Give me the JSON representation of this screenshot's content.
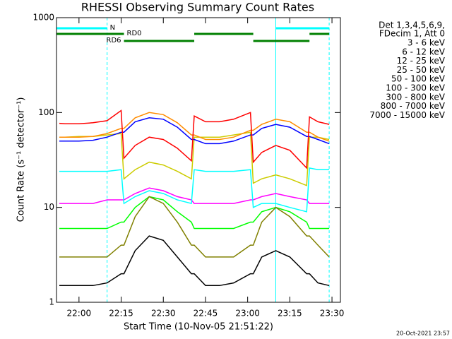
{
  "chart_data": {
    "type": "line",
    "title": "RHESSI Observing Summary Count Rates",
    "x_label": "Start Time (10-Nov-05 21:51:22)",
    "y_label": "Count Rate (s⁻¹ detector⁻¹)",
    "footer": "20-Oct-2021 23:57",
    "legend_header": [
      "Det 1,3,4,5,6,9,",
      "FDecim 1, Att 0"
    ],
    "log_y": true,
    "xlim": [
      "21:52",
      "23:33"
    ],
    "xticks": [
      "22:00",
      "22:15",
      "22:30",
      "22:45",
      "23:00",
      "23:15",
      "23:30"
    ],
    "ylim": [
      1,
      1000
    ],
    "yticks": [
      1,
      10,
      100,
      1000
    ],
    "bands": [
      {
        "label": "N",
        "color": "#00ffff",
        "spans": [
          [
            "21:52",
            "22:10"
          ],
          [
            "23:10",
            "23:29"
          ]
        ]
      },
      {
        "label": "RD0",
        "color": "#008000",
        "spans": [
          [
            "21:52",
            "22:16"
          ],
          [
            "22:41",
            "23:02"
          ],
          [
            "23:22",
            "23:29"
          ]
        ]
      },
      {
        "label": "RD6",
        "color": "#008000",
        "spans": [
          [
            "22:16",
            "22:41"
          ],
          [
            "23:02",
            "23:22"
          ]
        ]
      }
    ],
    "x": [
      "21:53",
      "21:55",
      "22:00",
      "22:05",
      "22:10",
      "22:15",
      "22:16",
      "22:20",
      "22:25",
      "22:30",
      "22:35",
      "22:40",
      "22:41",
      "22:45",
      "22:50",
      "22:55",
      "23:01",
      "23:02",
      "23:05",
      "23:10",
      "23:15",
      "23:21",
      "23:22",
      "23:25",
      "23:29"
    ],
    "series": [
      {
        "name": "3 - 6 keV",
        "color": "#000000",
        "values": [
          1.5,
          1.5,
          1.5,
          1.5,
          1.6,
          2,
          2,
          3.5,
          5,
          4.5,
          3,
          2,
          2,
          1.5,
          1.5,
          1.6,
          2,
          2,
          3,
          3.5,
          3,
          2,
          2,
          1.6,
          1.5
        ]
      },
      {
        "name": "6 - 12 keV",
        "color": "#ff00ff",
        "values": [
          11,
          11,
          11,
          11,
          12,
          12,
          12,
          14,
          16,
          15,
          13,
          12,
          11,
          11,
          11,
          11,
          12,
          12,
          13,
          14,
          13,
          12,
          11,
          11,
          11
        ]
      },
      {
        "name": "12 - 25 keV",
        "color": "#00ff00",
        "values": [
          6,
          6,
          6,
          6,
          6,
          7,
          7,
          10,
          13,
          12,
          9,
          7,
          6,
          6,
          6,
          6,
          7,
          7,
          9,
          10,
          9,
          7,
          6,
          6,
          6
        ]
      },
      {
        "name": "25 - 50 keV",
        "color": "#00ffff",
        "values": [
          24,
          24,
          24,
          24,
          24,
          25,
          11,
          13,
          15,
          14,
          12,
          11,
          25,
          24,
          24,
          24,
          25,
          10,
          11,
          11,
          10,
          9,
          26,
          25,
          25
        ]
      },
      {
        "name": "50 - 100 keV",
        "color": "#cccc00",
        "values": [
          55,
          55,
          56,
          56,
          58,
          60,
          20,
          25,
          30,
          28,
          24,
          20,
          55,
          55,
          55,
          58,
          62,
          18,
          20,
          22,
          20,
          17,
          55,
          55,
          52
        ]
      },
      {
        "name": "100 - 300 keV",
        "color": "#ff8c00",
        "values": [
          55,
          55,
          55,
          56,
          60,
          68,
          68,
          88,
          100,
          95,
          78,
          58,
          58,
          52,
          52,
          55,
          65,
          65,
          75,
          85,
          80,
          62,
          62,
          55,
          50
        ]
      },
      {
        "name": "300 - 800 keV",
        "color": "#0000ff",
        "values": [
          50,
          50,
          50,
          51,
          55,
          62,
          62,
          80,
          88,
          85,
          70,
          52,
          52,
          47,
          47,
          50,
          58,
          58,
          68,
          75,
          70,
          56,
          56,
          52,
          47
        ]
      },
      {
        "name": "800 - 7000 keV",
        "color": "#ff0000",
        "values": [
          77,
          76,
          76,
          78,
          82,
          105,
          33,
          45,
          55,
          52,
          42,
          31,
          92,
          80,
          80,
          85,
          100,
          30,
          38,
          45,
          40,
          26,
          90,
          80,
          75
        ]
      },
      {
        "name": "7000 - 15000 keV",
        "color": "#808000",
        "values": [
          3,
          3,
          3,
          3,
          3,
          4,
          4,
          8,
          13,
          11,
          7,
          4,
          4,
          3,
          3,
          3,
          4,
          4,
          7,
          10,
          8,
          5,
          5,
          4,
          3
        ]
      }
    ]
  }
}
